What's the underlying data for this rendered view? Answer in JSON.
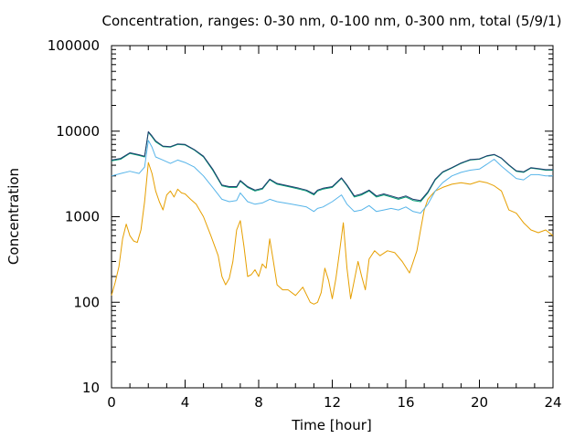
{
  "chart_data": {
    "type": "line",
    "title": "Concentration, ranges: 0-30 nm, 0-100 nm, 0-300 nm, total (5/9/1)",
    "xlabel": "Time [hour]",
    "ylabel": "Concentration",
    "xlim": [
      0,
      24
    ],
    "ylim": [
      10,
      100000
    ],
    "yscale": "log",
    "xticks": [
      0,
      4,
      8,
      12,
      16,
      20,
      24
    ],
    "yticks": [
      10,
      100,
      1000,
      10000,
      100000
    ],
    "xtick_labels": [
      "0",
      "4",
      "8",
      "12",
      "16",
      "20",
      "24"
    ],
    "ytick_labels": [
      "10",
      "100",
      "1000",
      "10000",
      "100000"
    ],
    "grid": false,
    "legend": "none",
    "series": [
      {
        "color": "#e69f00",
        "x": [
          0,
          0.2,
          0.4,
          0.6,
          0.8,
          1.0,
          1.2,
          1.4,
          1.6,
          1.8,
          2.0,
          2.2,
          2.4,
          2.6,
          2.8,
          3.0,
          3.2,
          3.4,
          3.6,
          3.8,
          4.0,
          4.3,
          4.6,
          5.0,
          5.4,
          5.8,
          6.0,
          6.2,
          6.4,
          6.6,
          6.8,
          7.0,
          7.2,
          7.4,
          7.6,
          7.8,
          8.0,
          8.2,
          8.4,
          8.6,
          8.8,
          9.0,
          9.3,
          9.6,
          10.0,
          10.4,
          10.8,
          11.0,
          11.2,
          11.4,
          11.6,
          11.8,
          12.0,
          12.2,
          12.4,
          12.6,
          12.8,
          13.0,
          13.2,
          13.4,
          13.6,
          13.8,
          14.0,
          14.3,
          14.6,
          15.0,
          15.4,
          15.8,
          16.2,
          16.6,
          16.8,
          17.0,
          17.2,
          17.4,
          17.6,
          18.0,
          18.5,
          19.0,
          19.5,
          20.0,
          20.4,
          20.8,
          21.2,
          21.6,
          22.0,
          22.4,
          22.8,
          23.2,
          23.6,
          24.0
        ],
        "y": [
          120,
          170,
          260,
          550,
          820,
          600,
          520,
          500,
          700,
          1500,
          4300,
          3200,
          2000,
          1500,
          1200,
          1800,
          2000,
          1700,
          2100,
          1900,
          1850,
          1600,
          1400,
          1000,
          600,
          350,
          200,
          160,
          190,
          300,
          700,
          900,
          450,
          200,
          210,
          240,
          200,
          280,
          250,
          550,
          300,
          160,
          140,
          140,
          120,
          150,
          100,
          95,
          100,
          130,
          250,
          180,
          110,
          190,
          400,
          850,
          250,
          110,
          180,
          300,
          200,
          140,
          320,
          400,
          350,
          400,
          380,
          300,
          220,
          400,
          700,
          1200,
          1600,
          1800,
          2000,
          2200,
          2400,
          2500,
          2400,
          2600,
          2500,
          2300,
          2000,
          1200,
          1100,
          850,
          700,
          650,
          700,
          600
        ]
      },
      {
        "color": "#56b4e9",
        "x": [
          0,
          0.5,
          1.0,
          1.5,
          1.8,
          2.0,
          2.2,
          2.4,
          2.8,
          3.2,
          3.6,
          4.0,
          4.5,
          5.0,
          5.5,
          6.0,
          6.4,
          6.8,
          7.0,
          7.4,
          7.8,
          8.2,
          8.6,
          9.0,
          9.4,
          9.8,
          10.2,
          10.6,
          11.0,
          11.2,
          11.5,
          12.0,
          12.5,
          12.8,
          13.2,
          13.6,
          14.0,
          14.4,
          14.8,
          15.2,
          15.6,
          16.0,
          16.4,
          16.8,
          17.2,
          17.6,
          18.0,
          18.5,
          19.0,
          19.5,
          20.0,
          20.4,
          20.8,
          21.2,
          21.6,
          22.0,
          22.4,
          22.8,
          23.2,
          23.6,
          24.0
        ],
        "y": [
          3000,
          3200,
          3400,
          3200,
          3800,
          7800,
          6500,
          5000,
          4600,
          4200,
          4600,
          4300,
          3800,
          3000,
          2200,
          1600,
          1500,
          1550,
          1900,
          1500,
          1400,
          1450,
          1600,
          1500,
          1450,
          1400,
          1350,
          1300,
          1150,
          1250,
          1300,
          1500,
          1800,
          1400,
          1150,
          1200,
          1350,
          1150,
          1200,
          1250,
          1200,
          1300,
          1150,
          1100,
          1400,
          2000,
          2500,
          3000,
          3300,
          3500,
          3600,
          4100,
          4700,
          3900,
          3300,
          2800,
          2700,
          3100,
          3100,
          3000,
          3000
        ]
      },
      {
        "color": "#009e73",
        "x": [
          0,
          0.5,
          1.0,
          1.5,
          1.8,
          2.0,
          2.2,
          2.4,
          2.8,
          3.2,
          3.6,
          4.0,
          4.5,
          5.0,
          5.5,
          6.0,
          6.4,
          6.8,
          7.0,
          7.4,
          7.8,
          8.2,
          8.6,
          9.0,
          9.4,
          9.8,
          10.2,
          10.6,
          11.0,
          11.2,
          11.5,
          12.0,
          12.5,
          12.8,
          13.2,
          13.6,
          14.0,
          14.4,
          14.8,
          15.2,
          15.6,
          16.0,
          16.4,
          16.8,
          17.2,
          17.6,
          18.0,
          18.5,
          19.0,
          19.5,
          20.0,
          20.4,
          20.8,
          21.2,
          21.6,
          22.0,
          22.4,
          22.8,
          23.2,
          23.6,
          24.0
        ],
        "y": [
          4500,
          4700,
          5500,
          5200,
          5000,
          9700,
          8600,
          7500,
          6600,
          6500,
          7000,
          6900,
          6000,
          5000,
          3500,
          2300,
          2200,
          2200,
          2600,
          2200,
          2000,
          2100,
          2700,
          2400,
          2300,
          2200,
          2100,
          2000,
          1800,
          2000,
          2100,
          2200,
          2800,
          2300,
          1700,
          1800,
          2000,
          1700,
          1800,
          1700,
          1600,
          1700,
          1550,
          1500,
          1900,
          2700,
          3300,
          3700,
          4200,
          4600,
          4700,
          5100,
          5300,
          4800,
          4000,
          3400,
          3300,
          3700,
          3600,
          3500,
          3500
        ]
      },
      {
        "color": "#1f3a6e",
        "x": [
          0,
          0.5,
          1.0,
          1.5,
          1.8,
          2.0,
          2.2,
          2.4,
          2.8,
          3.2,
          3.6,
          4.0,
          4.5,
          5.0,
          5.5,
          6.0,
          6.4,
          6.8,
          7.0,
          7.4,
          7.8,
          8.2,
          8.6,
          9.0,
          9.4,
          9.8,
          10.2,
          10.6,
          11.0,
          11.2,
          11.5,
          12.0,
          12.5,
          12.8,
          13.2,
          13.6,
          14.0,
          14.4,
          14.8,
          15.2,
          15.6,
          16.0,
          16.4,
          16.8,
          17.2,
          17.6,
          18.0,
          18.5,
          19.0,
          19.5,
          20.0,
          20.4,
          20.8,
          21.2,
          21.6,
          22.0,
          22.4,
          22.8,
          23.2,
          23.6,
          24.0
        ],
        "y": [
          4600,
          4800,
          5600,
          5300,
          5100,
          9900,
          8800,
          7700,
          6700,
          6600,
          7100,
          7000,
          6100,
          5100,
          3600,
          2350,
          2250,
          2250,
          2650,
          2250,
          2050,
          2150,
          2750,
          2450,
          2350,
          2250,
          2150,
          2050,
          1850,
          2050,
          2150,
          2250,
          2850,
          2350,
          1750,
          1850,
          2050,
          1750,
          1850,
          1750,
          1650,
          1750,
          1600,
          1550,
          1950,
          2750,
          3350,
          3750,
          4250,
          4650,
          4750,
          5150,
          5350,
          4850,
          4050,
          3450,
          3350,
          3750,
          3650,
          3550,
          3550
        ]
      }
    ]
  }
}
